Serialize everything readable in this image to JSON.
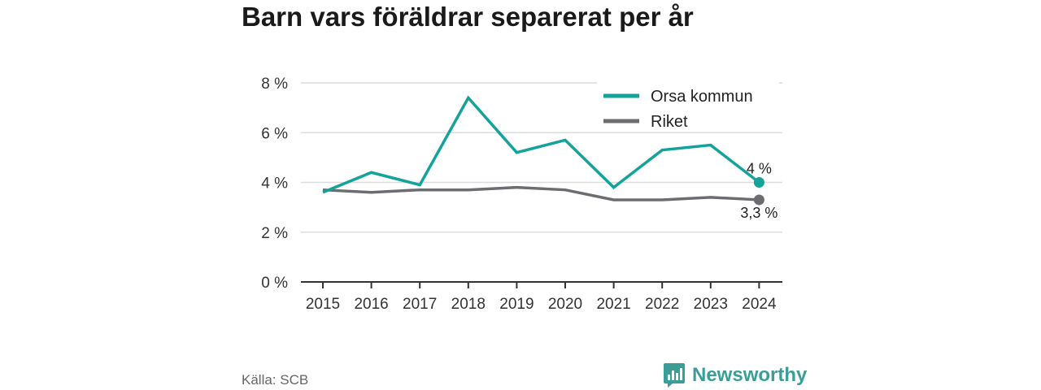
{
  "title": "Barn vars föräldrar separerat per år",
  "source": "Källa: SCB",
  "brand": {
    "name": "Newsworthy",
    "icon": "bar-chart-speech-bubble-icon",
    "color": "#3a9e97"
  },
  "chart_data": {
    "type": "line",
    "x": [
      "2015",
      "2016",
      "2017",
      "2018",
      "2019",
      "2020",
      "2021",
      "2022",
      "2023",
      "2024"
    ],
    "yticks": [
      "0 %",
      "2 %",
      "4 %",
      "6 %",
      "8 %"
    ],
    "ylim": [
      0,
      8
    ],
    "grid": true,
    "legend": "top-right",
    "series": [
      {
        "name": "Orsa kommun",
        "color": "#13a39a",
        "values": [
          3.6,
          4.4,
          3.9,
          7.4,
          5.2,
          5.7,
          3.8,
          5.3,
          5.5,
          4.0
        ],
        "end_label": "4 %"
      },
      {
        "name": "Riket",
        "color": "#6d6c71",
        "values": [
          3.7,
          3.6,
          3.7,
          3.7,
          3.8,
          3.7,
          3.3,
          3.3,
          3.4,
          3.3
        ],
        "end_label": "3,3 %"
      }
    ]
  }
}
